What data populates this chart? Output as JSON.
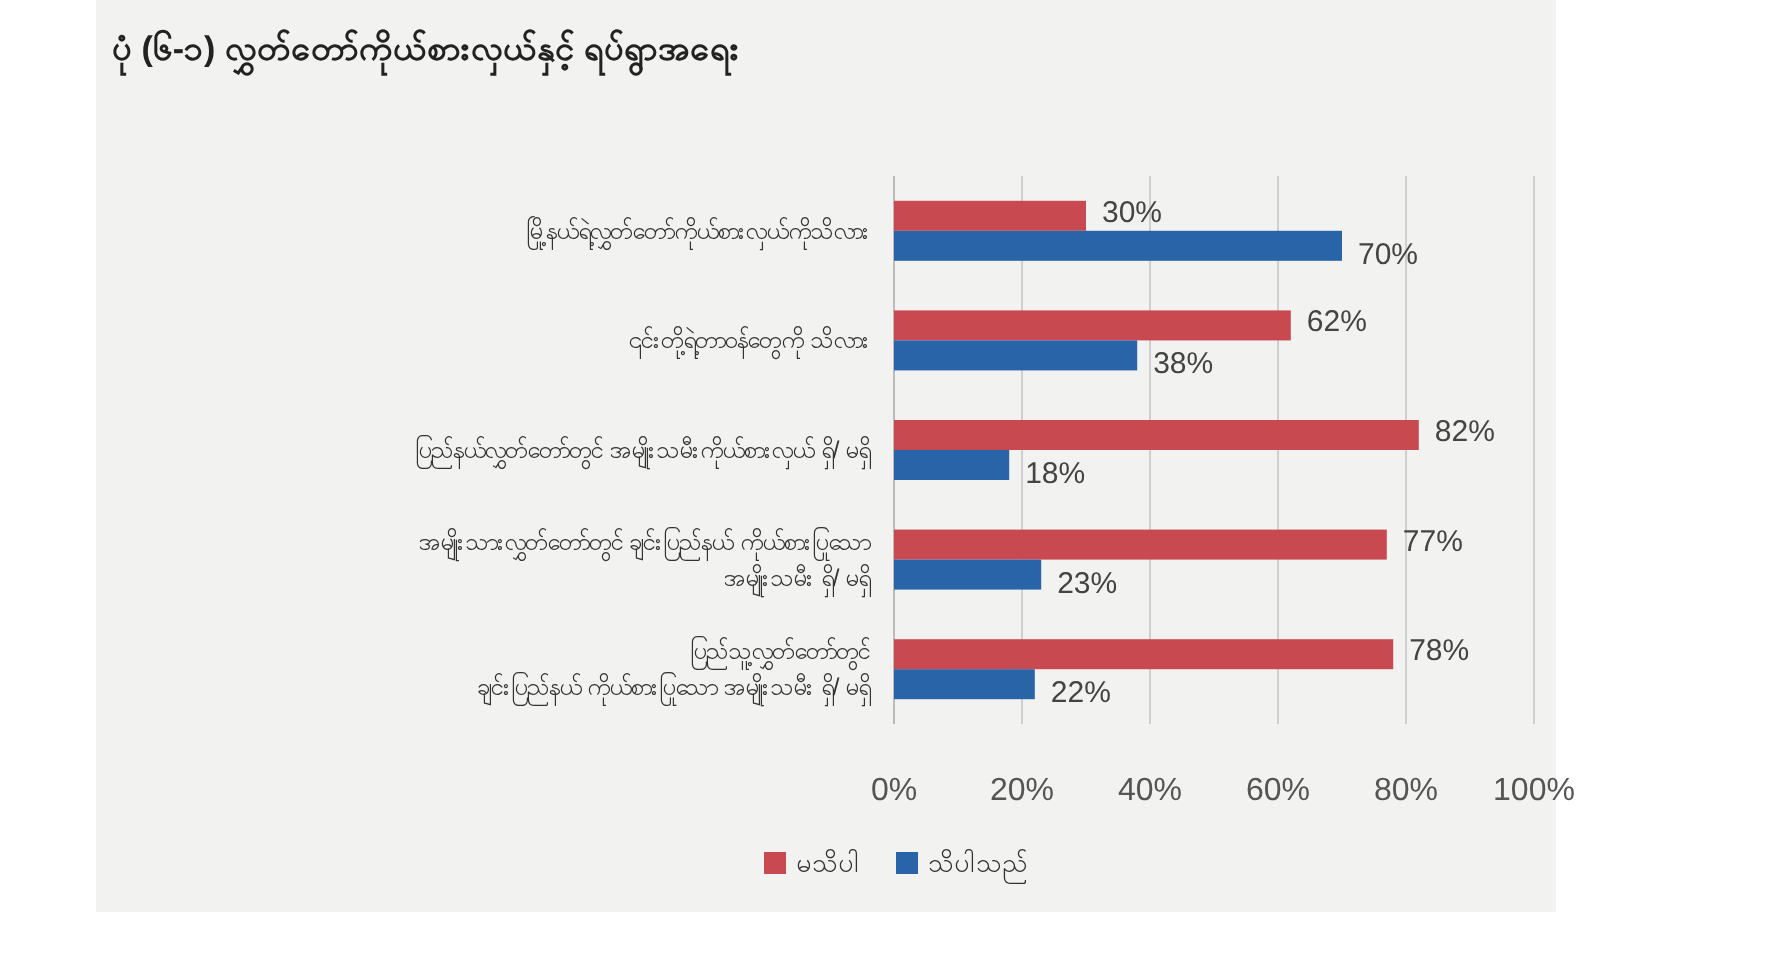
{
  "chart_data": {
    "type": "bar",
    "orientation": "horizontal",
    "title": "ပုံ (၆-၁) လွှတ်တော်ကိုယ်စားလှယ်နှင့် ရပ်ရွာအရေး",
    "categories": [
      "မြို့နယ်ရဲ့လွှတ်တော်ကိုယ်စားလှယ်ကိုသိလား",
      "၎င်းတို့ရဲ့တာဝန်တွေကို သိလား",
      "ပြည်နယ်လွှတ်တော်တွင် အမျိုးသမီးကိုယ်စားလှယ် ရှိ/ မရှိ",
      "အမျိုးသားလွှတ်တော်တွင် ချင်းပြည်နယ် ကိုယ်စားပြုသော\nအမျိုးသမီး ရှိ/ မရှိ",
      "ပြည်သူ့လွှတ်တော်တွင်\nချင်းပြည်နယ် ကိုယ်စားပြုသော အမျိုးသမီး ရှိ/ မရှိ"
    ],
    "series": [
      {
        "name": "မသိပါ",
        "color": "#c84a50",
        "values": [
          30,
          62,
          82,
          77,
          78
        ],
        "value_labels": [
          "30%",
          "62%",
          "82%",
          "77%",
          "78%"
        ]
      },
      {
        "name": "သိပါသည်",
        "color": "#2a64a8",
        "values": [
          70,
          38,
          18,
          23,
          22
        ],
        "value_labels": [
          "70%",
          "38%",
          "18%",
          "23%",
          "22%"
        ]
      }
    ],
    "xlim": [
      0,
      100
    ],
    "xticks": [
      {
        "value": 0,
        "label": "0%"
      },
      {
        "value": 20,
        "label": "20%"
      },
      {
        "value": 40,
        "label": "40%"
      },
      {
        "value": 60,
        "label": "60%"
      },
      {
        "value": 80,
        "label": "80%"
      },
      {
        "value": 100,
        "label": "100%"
      }
    ],
    "grid": "x",
    "legend": "bottom left"
  }
}
